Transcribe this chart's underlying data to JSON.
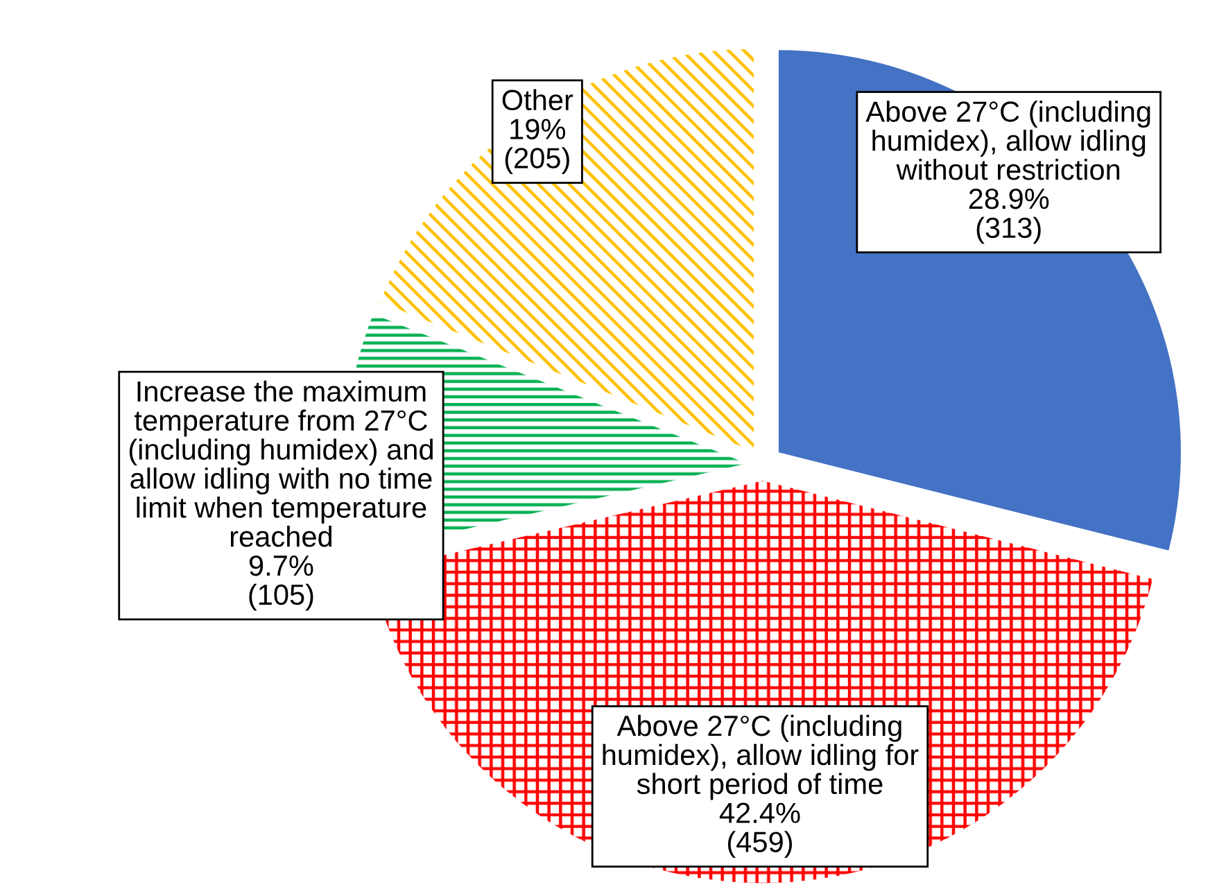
{
  "chart_data": {
    "type": "pie",
    "categories": [
      "Above 27°C (including\nhumidex), allow idling\nwithout restriction",
      "Above 27°C (including\nhumidex), allow idling for\nshort period of time",
      "Increase the maximum\ntemperature from 27°C\n(including humidex) and\nallow idling with no time\nlimit when temperature\nreached",
      "Other"
    ],
    "values": [
      313,
      459,
      105,
      205
    ],
    "value_labels": [
      "28.9%\n(313)",
      "42.4%\n(459)",
      "9.7%\n(105)",
      "19%\n(205)"
    ],
    "colors": [
      "#4472c4",
      "#ff0000",
      "#00b050",
      "#ffc000"
    ],
    "legend": false
  }
}
